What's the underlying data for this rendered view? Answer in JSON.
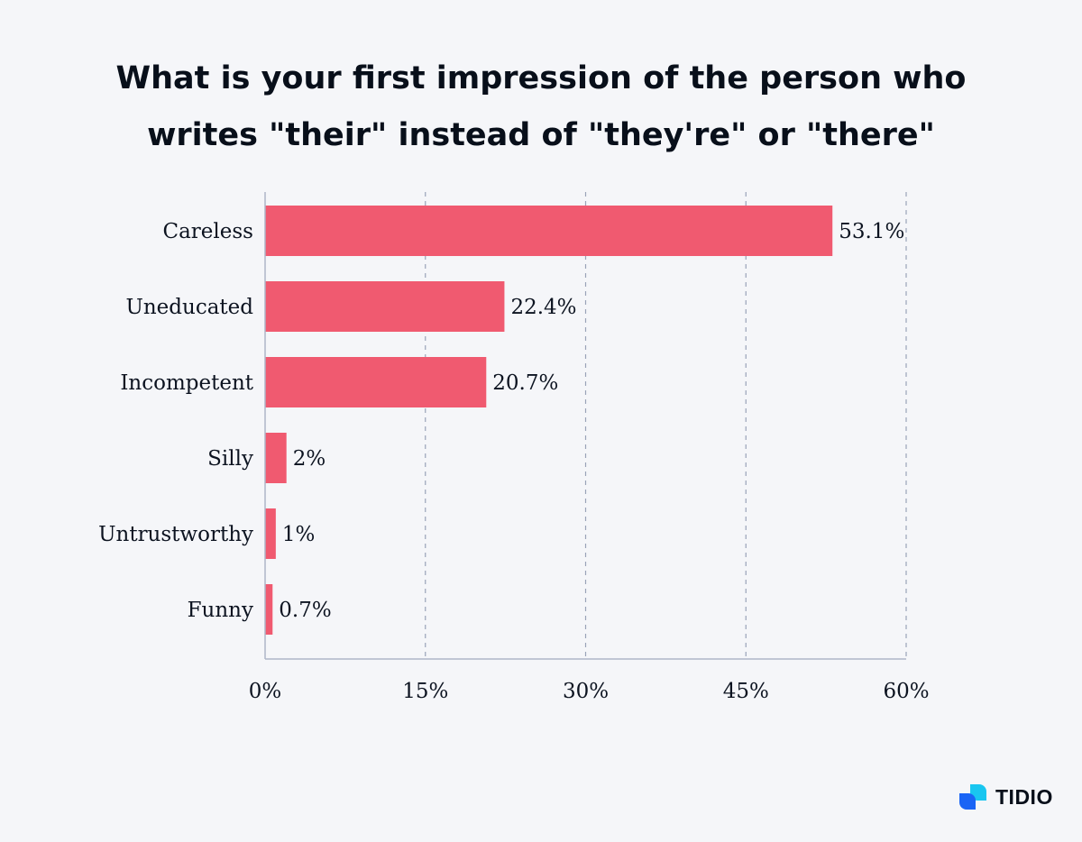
{
  "chart_data": {
    "type": "bar",
    "orientation": "horizontal",
    "title": "What is your first impression of the person who writes \"their\" instead of \"they're\" or \"there\"",
    "title_lines": [
      "What is your first impression of the person who",
      "writes \"their\" instead of \"they're\" or \"there\""
    ],
    "categories": [
      "Careless",
      "Uneducated",
      "Incompetent",
      "Silly",
      "Untrustworthy",
      "Funny"
    ],
    "values": [
      53.1,
      22.4,
      20.7,
      2,
      1,
      0.7
    ],
    "value_labels": [
      "53.1%",
      "22.4%",
      "20.7%",
      "2%",
      "1%",
      "0.7%"
    ],
    "xlim": [
      0,
      60
    ],
    "xticks": [
      0,
      15,
      30,
      45,
      60
    ],
    "xtick_labels": [
      "0%",
      "15%",
      "30%",
      "45%",
      "60%"
    ],
    "xlabel": "",
    "ylabel": "",
    "grid": "vertical dashed",
    "legend": "none",
    "bar_color": "#f05a70"
  },
  "brand": {
    "name": "TIDIO",
    "icon": "tidio-logo-icon",
    "colors": [
      "#1a64f5",
      "#19c6f0"
    ]
  }
}
